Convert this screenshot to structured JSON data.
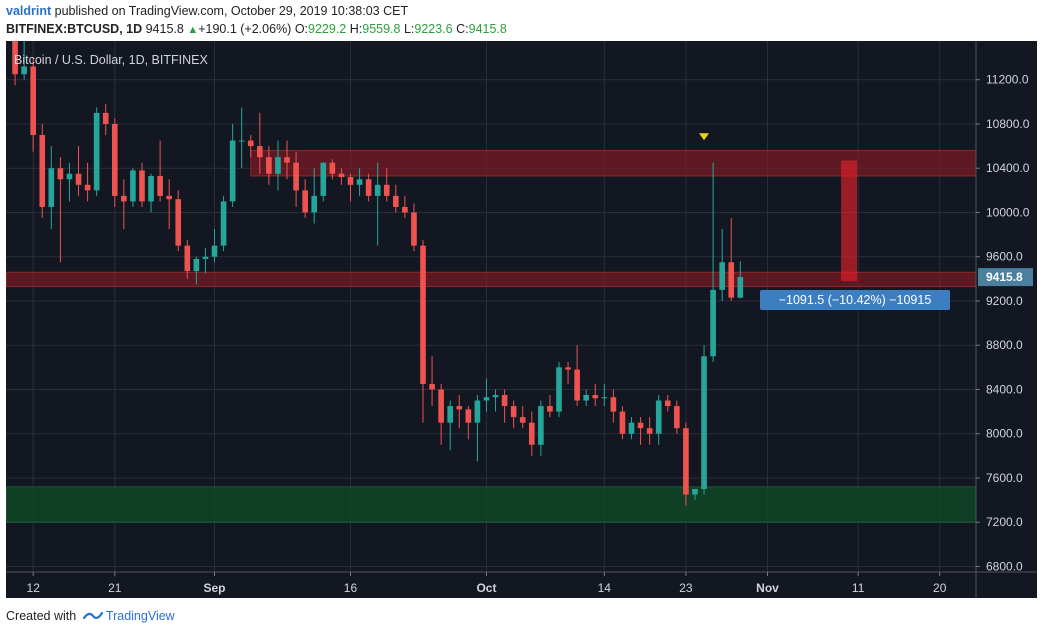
{
  "header": {
    "user": "valdrint",
    "published_text": "published on TradingView.com, October 29, 2019 10:38:03 CET"
  },
  "ohlc_bar": {
    "symbol": "BITFINEX:BTCUSD, 1D",
    "last": "9415.8",
    "change": "+190.1 (+2.06%)",
    "open_label": "O:",
    "open": "9229.2",
    "high_label": "H:",
    "high": "9559.8",
    "low_label": "L:",
    "low": "9223.6",
    "close_label": "C:",
    "close": "9415.8"
  },
  "footer": {
    "created_with": "Created with",
    "brand": "TradingView"
  },
  "colors": {
    "background": "#131722",
    "grid": "#2a2e39",
    "up": "#26a69a",
    "down": "#ef5350",
    "resistance_zone": "#8b1c23",
    "support_zone": "#0f4a26",
    "price_badge": "#4a7f9e",
    "measure_label": "#3d7ec0",
    "marker": "#f5d000"
  },
  "chart_data": {
    "type": "candlestick",
    "title": "Bitcoin / U.S. Dollar, 1D, BITFINEX",
    "ylim": [
      6750,
      11550
    ],
    "y_ticks": [
      6800,
      7200,
      7600,
      8000,
      8400,
      8800,
      9200,
      9600,
      10000,
      10400,
      10800,
      11200
    ],
    "y_tick_labels": [
      "6800.0",
      "7200.0",
      "7600.0",
      "8000.0",
      "8400.0",
      "8800.0",
      "9200.0",
      "9600.0",
      "10000.0",
      "10400.0",
      "10800.0",
      "11200.0"
    ],
    "x_start": "2019-08-09",
    "x_end": "2019-11-24",
    "x_ticks": [
      {
        "date": "2019-08-12",
        "label": "12"
      },
      {
        "date": "2019-08-21",
        "label": "21"
      },
      {
        "date": "2019-09-01",
        "label": "Sep"
      },
      {
        "date": "2019-09-16",
        "label": "16"
      },
      {
        "date": "2019-10-01",
        "label": "Oct"
      },
      {
        "date": "2019-10-14",
        "label": "14"
      },
      {
        "date": "2019-10-23",
        "label": "23"
      },
      {
        "date": "2019-11-01",
        "label": "Nov"
      },
      {
        "date": "2019-11-11",
        "label": "11"
      },
      {
        "date": "2019-11-20",
        "label": "20"
      }
    ],
    "grid": true,
    "current_price": "9415.8",
    "zones": [
      {
        "kind": "resistance",
        "from": 10330,
        "to": 10560,
        "start": "2019-09-05",
        "end": "2019-11-24"
      },
      {
        "kind": "resistance",
        "from": 9330,
        "to": 9460,
        "start": "2019-08-09",
        "end": "2019-11-24"
      },
      {
        "kind": "support",
        "from": 7200,
        "to": 7520,
        "start": "2019-08-09",
        "end": "2019-11-24"
      }
    ],
    "measure": {
      "date": "2019-11-10",
      "from": 10470,
      "to": 9380,
      "label": "−1091.5 (−10.42%) −10915"
    },
    "marker": {
      "date": "2019-10-25",
      "price": 10680
    },
    "candles": [
      [
        "2019-08-09",
        11850,
        12030,
        11600,
        11900
      ],
      [
        "2019-08-10",
        11900,
        11950,
        11150,
        11250
      ],
      [
        "2019-08-11",
        11250,
        11600,
        11200,
        11320
      ],
      [
        "2019-08-12",
        11320,
        11400,
        10550,
        10700
      ],
      [
        "2019-08-13",
        10700,
        10800,
        9950,
        10050
      ],
      [
        "2019-08-14",
        10050,
        10600,
        9850,
        10400
      ],
      [
        "2019-08-15",
        10400,
        10500,
        9550,
        10300
      ],
      [
        "2019-08-16",
        10300,
        10450,
        10100,
        10350
      ],
      [
        "2019-08-17",
        10350,
        10600,
        10150,
        10250
      ],
      [
        "2019-08-18",
        10250,
        10450,
        10100,
        10200
      ],
      [
        "2019-08-19",
        10200,
        10950,
        10150,
        10900
      ],
      [
        "2019-08-20",
        10900,
        10980,
        10700,
        10800
      ],
      [
        "2019-08-21",
        10800,
        10850,
        10050,
        10150
      ],
      [
        "2019-08-22",
        10150,
        10300,
        9850,
        10100
      ],
      [
        "2019-08-23",
        10100,
        10400,
        10050,
        10380
      ],
      [
        "2019-08-24",
        10380,
        10450,
        10050,
        10100
      ],
      [
        "2019-08-25",
        10100,
        10350,
        10000,
        10330
      ],
      [
        "2019-08-26",
        10330,
        10650,
        10100,
        10150
      ],
      [
        "2019-08-27",
        10150,
        10300,
        9850,
        10120
      ],
      [
        "2019-08-28",
        10120,
        10200,
        9650,
        9700
      ],
      [
        "2019-08-29",
        9700,
        9750,
        9400,
        9470
      ],
      [
        "2019-08-30",
        9470,
        9600,
        9350,
        9580
      ],
      [
        "2019-08-31",
        9580,
        9680,
        9450,
        9600
      ],
      [
        "2019-09-01",
        9600,
        9850,
        9550,
        9700
      ],
      [
        "2019-09-02",
        9700,
        10150,
        9650,
        10100
      ],
      [
        "2019-09-03",
        10100,
        10800,
        10050,
        10650
      ],
      [
        "2019-09-04",
        10650,
        10950,
        10400,
        10650
      ],
      [
        "2019-09-05",
        10650,
        10700,
        10500,
        10600
      ],
      [
        "2019-09-06",
        10600,
        10900,
        10350,
        10500
      ],
      [
        "2019-09-07",
        10500,
        10600,
        10250,
        10350
      ],
      [
        "2019-09-08",
        10350,
        10650,
        10200,
        10500
      ],
      [
        "2019-09-09",
        10500,
        10650,
        10300,
        10450
      ],
      [
        "2019-09-10",
        10450,
        10550,
        10050,
        10200
      ],
      [
        "2019-09-11",
        10200,
        10300,
        9950,
        10000
      ],
      [
        "2019-09-12",
        10000,
        10400,
        9900,
        10150
      ],
      [
        "2019-09-13",
        10150,
        10450,
        10100,
        10450
      ],
      [
        "2019-09-14",
        10450,
        10480,
        10300,
        10350
      ],
      [
        "2019-09-15",
        10350,
        10400,
        10250,
        10320
      ],
      [
        "2019-09-16",
        10320,
        10350,
        10100,
        10250
      ],
      [
        "2019-09-17",
        10250,
        10400,
        10150,
        10300
      ],
      [
        "2019-09-18",
        10300,
        10350,
        10100,
        10150
      ],
      [
        "2019-09-19",
        10150,
        10450,
        9700,
        10250
      ],
      [
        "2019-09-20",
        10250,
        10400,
        10100,
        10150
      ],
      [
        "2019-09-21",
        10150,
        10250,
        10000,
        10050
      ],
      [
        "2019-09-22",
        10050,
        10150,
        9950,
        10000
      ],
      [
        "2019-09-23",
        10000,
        10080,
        9650,
        9700
      ],
      [
        "2019-09-24",
        9700,
        9750,
        8100,
        8450
      ],
      [
        "2019-09-25",
        8450,
        8700,
        8250,
        8400
      ],
      [
        "2019-09-26",
        8400,
        8450,
        7900,
        8100
      ],
      [
        "2019-09-27",
        8100,
        8300,
        7850,
        8250
      ],
      [
        "2019-09-28",
        8250,
        8350,
        8050,
        8220
      ],
      [
        "2019-09-29",
        8220,
        8250,
        7950,
        8100
      ],
      [
        "2019-09-30",
        8100,
        8350,
        7750,
        8300
      ],
      [
        "2019-10-01",
        8300,
        8500,
        8200,
        8330
      ],
      [
        "2019-10-02",
        8330,
        8400,
        8200,
        8350
      ],
      [
        "2019-10-03",
        8350,
        8400,
        8100,
        8250
      ],
      [
        "2019-10-04",
        8250,
        8300,
        8050,
        8150
      ],
      [
        "2019-10-05",
        8150,
        8250,
        8050,
        8100
      ],
      [
        "2019-10-06",
        8100,
        8200,
        7800,
        7900
      ],
      [
        "2019-10-07",
        7900,
        8300,
        7800,
        8250
      ],
      [
        "2019-10-08",
        8250,
        8350,
        8150,
        8200
      ],
      [
        "2019-10-09",
        8200,
        8650,
        8150,
        8600
      ],
      [
        "2019-10-10",
        8600,
        8650,
        8450,
        8580
      ],
      [
        "2019-10-11",
        8580,
        8800,
        8250,
        8300
      ],
      [
        "2019-10-12",
        8300,
        8400,
        8250,
        8350
      ],
      [
        "2019-10-13",
        8350,
        8450,
        8250,
        8320
      ],
      [
        "2019-10-14",
        8320,
        8450,
        8250,
        8330
      ],
      [
        "2019-10-15",
        8330,
        8400,
        8100,
        8200
      ],
      [
        "2019-10-16",
        8200,
        8250,
        7950,
        8000
      ],
      [
        "2019-10-17",
        8000,
        8150,
        7950,
        8100
      ],
      [
        "2019-10-18",
        8100,
        8150,
        7900,
        8050
      ],
      [
        "2019-10-19",
        8050,
        8150,
        7900,
        8000
      ],
      [
        "2019-10-20",
        8000,
        8350,
        7900,
        8300
      ],
      [
        "2019-10-21",
        8300,
        8350,
        8200,
        8250
      ],
      [
        "2019-10-22",
        8250,
        8300,
        8000,
        8050
      ],
      [
        "2019-10-23",
        8050,
        8100,
        7350,
        7450
      ],
      [
        "2019-10-24",
        7450,
        7500,
        7400,
        7500
      ],
      [
        "2019-10-25",
        7500,
        8800,
        7450,
        8700
      ],
      [
        "2019-10-26",
        8700,
        10450,
        8650,
        9300
      ],
      [
        "2019-10-27",
        9300,
        9850,
        9200,
        9550
      ],
      [
        "2019-10-28",
        9550,
        9950,
        9200,
        9230
      ],
      [
        "2019-10-29",
        9229.2,
        9559.8,
        9223.6,
        9415.8
      ]
    ]
  }
}
